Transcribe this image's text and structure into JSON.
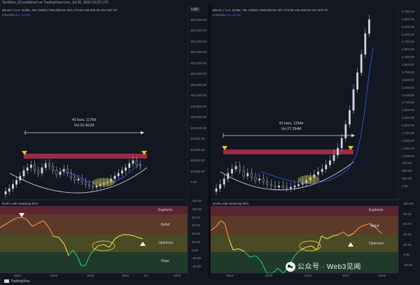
{
  "banner": "TechDev_52 published on TradingView.com, Jul 06, 2024 16:22 UTC",
  "left": {
    "legend_line1": "Bitcoin / U.S. Dollar, 4M, INDEX  O66,639.65  H67,275.99  L53,458.05  C57,537.87",
    "ichimoku_label": "Ichimoku",
    "ichimoku_value": "54,144.85",
    "bars_label": "42 bars, 1176d",
    "vol_label": "Vol 29.461M",
    "indicator_title": "NUPL with Heatmap BTC",
    "zones": [
      "Euphoria",
      "Belief",
      "Optimism",
      "Hope"
    ],
    "x_ticks": [
      "2021",
      "2022",
      "2023",
      "2024",
      "Jul",
      "2025"
    ]
  },
  "right": {
    "legend_line1": "Bitcoin / U.S. Dollar, 4M, INDEX  O66,639.65  H67,275.99  L53,458.05  C57,537.87",
    "ichimoku_label": "Ichimoku",
    "ichimoku_value": "54,144.85",
    "bars_label": "43 bars, 1204d",
    "vol_label": "Vol 27.294M",
    "indicator_title": "NUPL with Heatmap BTC",
    "zones": [
      "Euphoria",
      "Belief",
      "Optimism",
      "Hope"
    ],
    "x_ticks": [
      "2014",
      "2015",
      "2016",
      "2017",
      "2018"
    ]
  },
  "usd_label": "USD",
  "left_axis_ticks": [
    "300,000.00",
    "280,000.00",
    "260,000.00",
    "240,000.00",
    "220,000.00",
    "200,000.00",
    "180,000.00",
    "160,000.00",
    "140,000.00",
    "120,000.00",
    "100,000.00",
    "80,000.00",
    "60,000.00",
    "40,000.00",
    "20,000.00",
    "0.00"
  ],
  "mid_ind_ticks": [
    "120.00",
    "100.00",
    "80.00",
    "60.00",
    "40.00",
    "20.00",
    "0.00",
    "-20.00",
    "-40.00"
  ],
  "right_axis_ticks": [
    "5,750.00",
    "5,500.00",
    "5,250.00",
    "5,000.00",
    "4,750.00",
    "4,500.00",
    "4,250.00",
    "4,000.00",
    "3,750.00",
    "3,500.00",
    "3,250.00",
    "3,000.00",
    "2,750.00",
    "2,500.00",
    "2,250.00",
    "2,000.00",
    "1,750.00",
    "1,500.00",
    "1,250.00",
    "1,000.00",
    "750.00",
    "500.00",
    "250.00",
    "0.00"
  ],
  "right_ind_ticks": [
    "100.00",
    "80.00",
    "60.00",
    "40.00",
    "20.00",
    "0.00",
    "-20.00"
  ],
  "footer_text": "TradingView",
  "watermark": "公众号 · Web3见闻",
  "colors": {
    "background": "#131722",
    "candle": "#d1d4dc",
    "resistance_band": "#b0304a",
    "euphoria_zone": "#5a2530",
    "belief_zone": "#5c3a2a",
    "optimism_zone": "#4a4a25",
    "hope_zone": "#1f3a2a",
    "ichimoku": "#2962ff",
    "highlight_ellipse": "#c8c24a",
    "marker_triangle": "#f5c518"
  }
}
